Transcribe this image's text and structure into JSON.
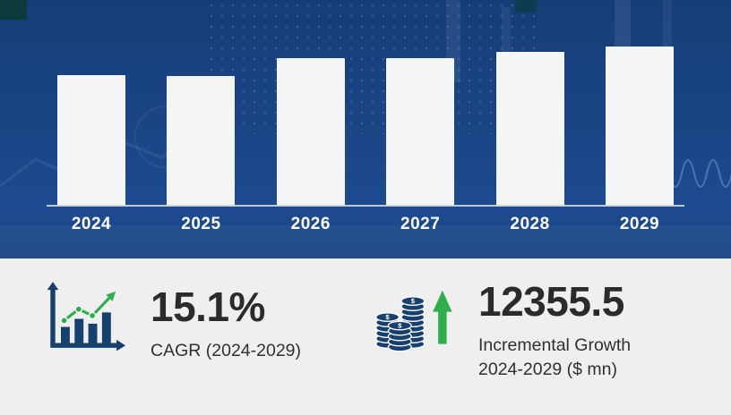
{
  "chart_data": {
    "type": "bar",
    "title": "",
    "categories": [
      "2024",
      "2025",
      "2026",
      "2027",
      "2028",
      "2029"
    ],
    "values": [
      146,
      145,
      165,
      165,
      172,
      178
    ],
    "value_scale": "relative bar heights in px; chart has no labeled numeric axis",
    "xlabel": "",
    "ylabel": "",
    "legend": false,
    "grid": false,
    "bar_color": "#f4f5f7",
    "baseline_color": "#cfd7de"
  },
  "stats": {
    "cagr": {
      "value": "15.1%",
      "label": "CAGR (2024-2029)",
      "icon": "growth-chart-icon"
    },
    "incremental_growth": {
      "value": "12355.5",
      "label_line1": "Incremental Growth",
      "label_line2": "2024-2029 ($ mn)",
      "icon": "coins-up-arrow-icon"
    }
  },
  "icons": {
    "dollar": "$"
  },
  "colors": {
    "navy_bg": "#1a4484",
    "bar_fill": "#f4f5f7",
    "accent_green": "#2fae4e",
    "icon_navy": "#17406f",
    "ink": "#2b2b2b",
    "panel_gray": "#efeff0",
    "year_label": "#ffffff"
  }
}
